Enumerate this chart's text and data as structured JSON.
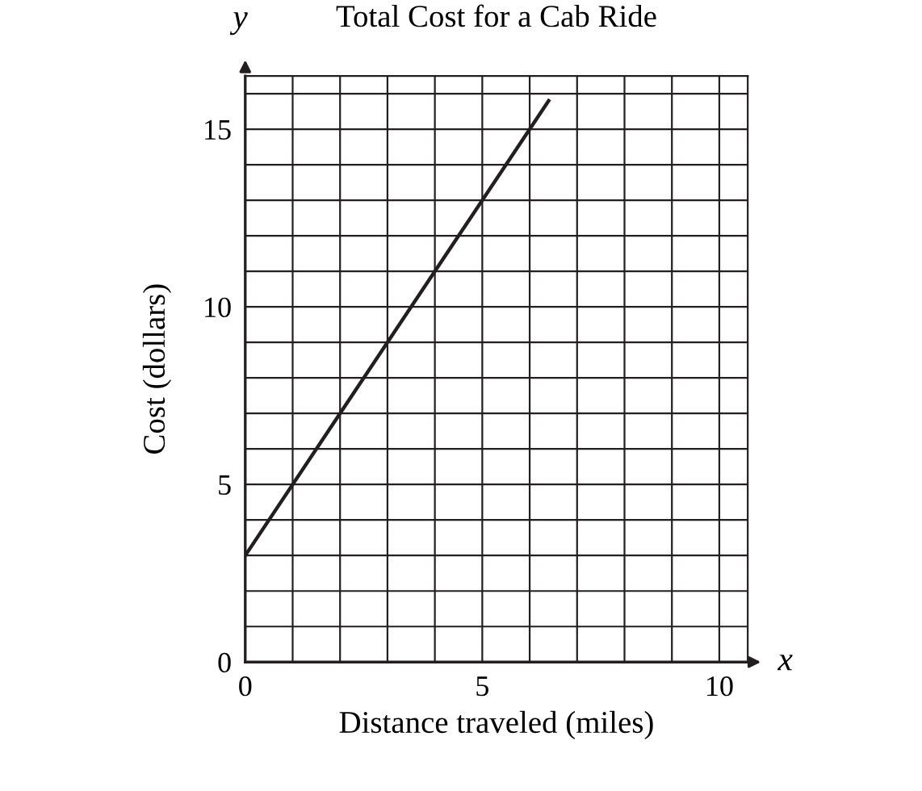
{
  "chart_data": {
    "type": "line",
    "title": "Total Cost for a Cab Ride",
    "xlabel": "Distance traveled (miles)",
    "ylabel": "Cost (dollars)",
    "x": [
      0,
      6.4
    ],
    "series": [
      {
        "color": "#231f20",
        "values": [
          3,
          15.8
        ]
      }
    ],
    "xlim": [
      0,
      10.6
    ],
    "ylim": [
      0,
      16.5
    ],
    "xticks": [
      0,
      {
        "value": 1,
        "label": null
      },
      {
        "value": 2,
        "label": null
      },
      {
        "value": 3,
        "label": null
      },
      {
        "value": 4,
        "label": null
      },
      5,
      {
        "value": 6,
        "label": null
      },
      {
        "value": 7,
        "label": null
      },
      {
        "value": 8,
        "label": null
      },
      {
        "value": 9,
        "label": null
      },
      10
    ],
    "yticks": [
      0,
      {
        "value": 1,
        "label": null
      },
      {
        "value": 2,
        "label": null
      },
      {
        "value": 3,
        "label": null
      },
      {
        "value": 4,
        "label": null
      },
      5,
      {
        "value": 6,
        "label": null
      },
      {
        "value": 7,
        "label": null
      },
      {
        "value": 8,
        "label": null
      },
      {
        "value": 9,
        "label": null
      },
      10,
      {
        "value": 11,
        "label": null
      },
      {
        "value": 12,
        "label": null
      },
      {
        "value": 13,
        "label": null
      },
      {
        "value": 14,
        "label": null
      },
      15,
      {
        "value": 16,
        "label": null
      }
    ],
    "grid": true,
    "marker": "none",
    "line_style": "solid",
    "annotations": [
      "x",
      "y"
    ]
  }
}
